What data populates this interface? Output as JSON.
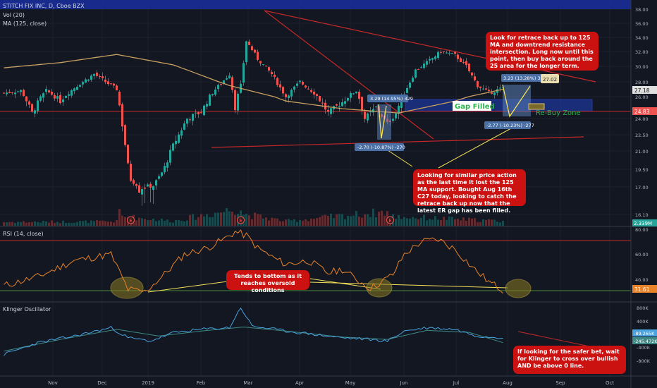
{
  "header": {
    "symbol_line": "STITCH FIX INC, D, Cboe BZX",
    "vol_line": "Vol (20)",
    "ma_line": "MA (125, close)"
  },
  "panels": {
    "rsi_title": "RSI (14, close)",
    "klinger_title": "Klinger Oscillator"
  },
  "colors": {
    "background": "#131722",
    "up": "#26a69a",
    "down": "#ef5350",
    "ma": "#c8a060",
    "rsi": "#e8832a",
    "klinger": "#4aa3df",
    "signal": "#3d8a86",
    "callout": "#cc1111",
    "annotation_arrow": "#f5e15a",
    "zone": "#1f3fbf"
  },
  "annotations": {
    "callout_retrace": "Look for retrace back up to 125 MA and downtrend resistance intersection. Long now until this point, then buy back around the 25 area for the longer term.",
    "callout_similar": "Looking for similar price action as the last time it lost the 125 MA support. Bought Aug 16th C27 today, looking to catch the retrace back up now that the latest ER gap has been filled.",
    "callout_oversold": "Tends to bottom as it reaches oversold conditions",
    "callout_klinger": "If looking for the safer bet, wait for Klinger to cross over bullish AND be above 0 line.",
    "gap_filled": "Gap Filled",
    "rebuy_zone": "Re-Buy Zone",
    "measure_up_1": "3.29 (14.95%) 329",
    "measure_down_1": "-2.70 (-10.87%) -270",
    "measure_up_2": "3.23 (13.28%) 323",
    "measure_down_2": "-2.77 (-10.23%) -277",
    "price_box": "27.02",
    "earnings_marker": "E"
  },
  "chart_data": {
    "type": "candlestick",
    "title": "STITCH FIX INC, D, Cboe BZX",
    "price_axis": {
      "ticks": [
        "38.00",
        "36.00",
        "34.00",
        "32.00",
        "30.00",
        "28.00",
        "26.00",
        "24.00",
        "22.50",
        "21.00",
        "19.50",
        "17.00",
        "16.10"
      ],
      "last_labels": [
        "27.18",
        "24.83",
        "2.339M"
      ]
    },
    "rsi_axis": {
      "ticks": [
        "80.00",
        "60.00",
        "40.00"
      ],
      "last_label": "31.61",
      "overbought": 70,
      "oversold": 30
    },
    "klinger_axis": {
      "ticks": [
        "800K",
        "400K",
        "-400K",
        "-800K"
      ],
      "last_labels": [
        "-89.265K",
        "-245.472K"
      ]
    },
    "x_axis": {
      "labels": [
        "Nov",
        "Dec",
        "2019",
        "Feb",
        "Mar",
        "Apr",
        "May",
        "Jun",
        "Jul",
        "Aug",
        "Sep",
        "Oct"
      ]
    },
    "close_anchors": [
      [
        0,
        26.5
      ],
      [
        6,
        26.8
      ],
      [
        10,
        24.5
      ],
      [
        15,
        26.8
      ],
      [
        20,
        25.6
      ],
      [
        26,
        27.5
      ],
      [
        32,
        29.0
      ],
      [
        40,
        27.0
      ],
      [
        45,
        18.0
      ],
      [
        48,
        17.0
      ],
      [
        53,
        17.2
      ],
      [
        60,
        21.5
      ],
      [
        65,
        24.0
      ],
      [
        70,
        24.6
      ],
      [
        75,
        27.0
      ],
      [
        80,
        29.0
      ],
      [
        82,
        25.0
      ],
      [
        84,
        27.5
      ],
      [
        86,
        33.5
      ],
      [
        90,
        31.0
      ],
      [
        95,
        29.0
      ],
      [
        100,
        26.0
      ],
      [
        105,
        28.0
      ],
      [
        110,
        26.5
      ],
      [
        115,
        24.5
      ],
      [
        120,
        25.5
      ],
      [
        125,
        26.8
      ],
      [
        128,
        24.0
      ],
      [
        132,
        25.0
      ],
      [
        136,
        23.5
      ],
      [
        139,
        24.5
      ],
      [
        142,
        26.5
      ],
      [
        146,
        29.5
      ],
      [
        150,
        30.5
      ],
      [
        155,
        32.0
      ],
      [
        160,
        31.5
      ],
      [
        164,
        30.0
      ],
      [
        168,
        27.5
      ],
      [
        172,
        26.5
      ],
      [
        177,
        27.18
      ]
    ],
    "ma125_anchors": [
      [
        0,
        29.8
      ],
      [
        20,
        30.5
      ],
      [
        40,
        31.6
      ],
      [
        60,
        30.2
      ],
      [
        80,
        27.5
      ],
      [
        100,
        25.6
      ],
      [
        120,
        24.9
      ],
      [
        140,
        24.5
      ],
      [
        160,
        25.6
      ],
      [
        177,
        27.0
      ]
    ],
    "volume_anchors": [
      [
        0,
        0.8
      ],
      [
        40,
        0.9
      ],
      [
        41,
        3.2
      ],
      [
        42,
        2.0
      ],
      [
        60,
        1.0
      ],
      [
        84,
        3.8
      ],
      [
        85,
        2.5
      ],
      [
        100,
        1.0
      ],
      [
        136,
        3.0
      ],
      [
        137,
        2.0
      ],
      [
        177,
        1.0
      ]
    ],
    "rsi_anchors": [
      [
        0,
        35
      ],
      [
        12,
        42
      ],
      [
        25,
        55
      ],
      [
        38,
        60
      ],
      [
        44,
        32
      ],
      [
        50,
        30
      ],
      [
        56,
        42
      ],
      [
        64,
        60
      ],
      [
        72,
        65
      ],
      [
        78,
        72
      ],
      [
        82,
        78
      ],
      [
        86,
        75
      ],
      [
        90,
        65
      ],
      [
        95,
        58
      ],
      [
        100,
        52
      ],
      [
        108,
        55
      ],
      [
        115,
        45
      ],
      [
        120,
        48
      ],
      [
        125,
        40
      ],
      [
        130,
        33
      ],
      [
        134,
        38
      ],
      [
        138,
        44
      ],
      [
        142,
        60
      ],
      [
        148,
        70
      ],
      [
        154,
        72
      ],
      [
        160,
        64
      ],
      [
        166,
        50
      ],
      [
        172,
        38
      ],
      [
        177,
        31.61
      ]
    ],
    "klinger_anchors": [
      [
        0,
        -600
      ],
      [
        12,
        -250
      ],
      [
        25,
        -50
      ],
      [
        38,
        200
      ],
      [
        44,
        -100
      ],
      [
        52,
        -200
      ],
      [
        60,
        50
      ],
      [
        70,
        150
      ],
      [
        80,
        200
      ],
      [
        84,
        800
      ],
      [
        88,
        250
      ],
      [
        100,
        100
      ],
      [
        110,
        0
      ],
      [
        120,
        -100
      ],
      [
        130,
        -150
      ],
      [
        136,
        -200
      ],
      [
        142,
        100
      ],
      [
        150,
        200
      ],
      [
        160,
        150
      ],
      [
        168,
        -50
      ],
      [
        177,
        -89.265
      ]
    ],
    "signal_anchors": [
      [
        0,
        -500
      ],
      [
        20,
        -150
      ],
      [
        40,
        150
      ],
      [
        55,
        -50
      ],
      [
        70,
        100
      ],
      [
        85,
        220
      ],
      [
        100,
        100
      ],
      [
        120,
        -80
      ],
      [
        136,
        -150
      ],
      [
        150,
        120
      ],
      [
        165,
        60
      ],
      [
        177,
        -245.472
      ]
    ],
    "earnings_x": [
      45,
      84,
      137
    ]
  }
}
